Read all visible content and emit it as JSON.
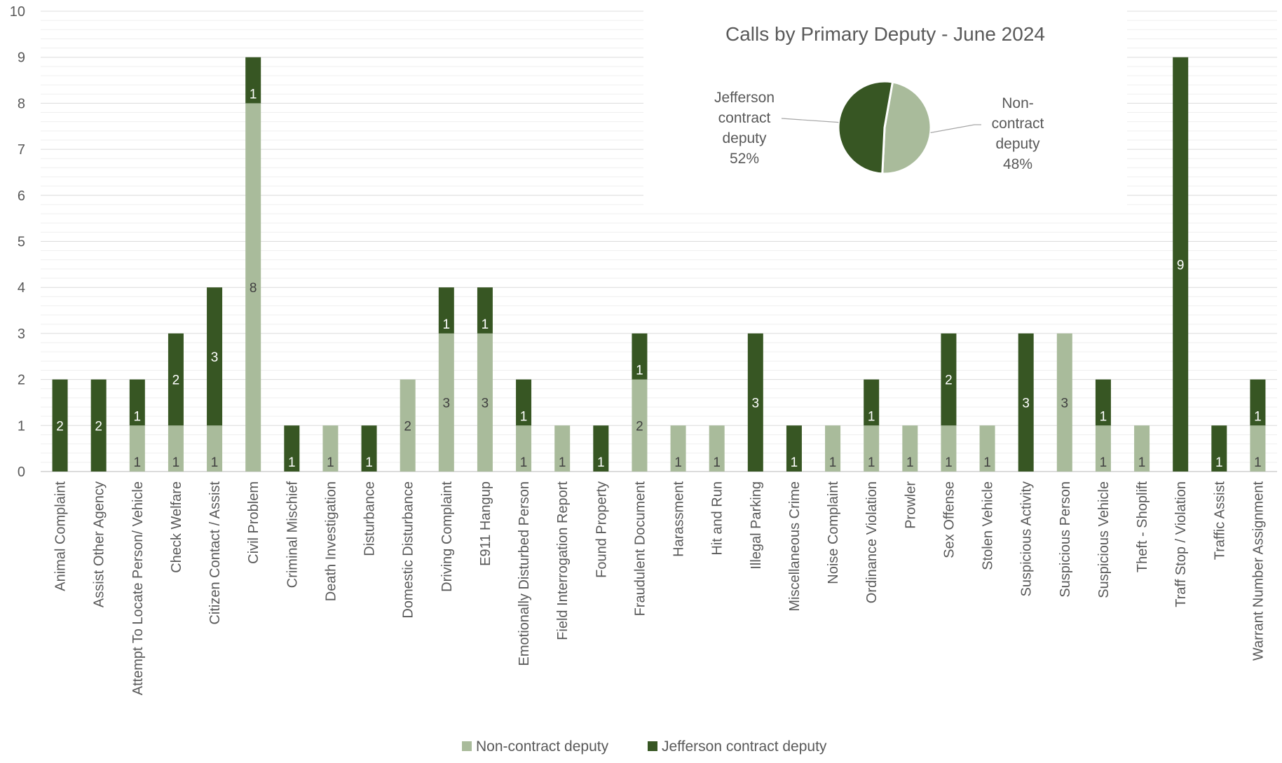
{
  "chart_data": [
    {
      "type": "bar",
      "stacked": true,
      "categories": [
        "Animal Complaint",
        "Assist Other Agency",
        "Attempt To Locate Person/ Vehicle",
        "Check Welfare",
        "Citizen Contact / Assist",
        "Civil Problem",
        "Criminal Mischief",
        "Death Investigation",
        "Disturbance",
        "Domestic Disturbance",
        "Driving Complaint",
        "E911 Hangup",
        "Emotionally Disturbed Person",
        "Field Interrogation Report",
        "Found Property",
        "Fraudulent Document",
        "Harassment",
        "Hit and Run",
        "Illegal Parking",
        "Miscellaneous Crime",
        "Noise Complaint",
        "Ordinance Violation",
        "Prowler",
        "Sex Offense",
        "Stolen Vehicle",
        "Suspicious Activity",
        "Suspicious Person",
        "Suspicious Vehicle",
        "Theft - Shoplift",
        "Traff Stop / Violation",
        "Traffic Assist",
        "Warrant Number Assignment"
      ],
      "series": [
        {
          "name": "Non-contract deputy",
          "color": "#a9bb9b",
          "values": [
            0,
            0,
            1,
            1,
            1,
            8,
            0,
            1,
            0,
            2,
            3,
            3,
            1,
            1,
            0,
            2,
            1,
            1,
            0,
            0,
            1,
            1,
            1,
            1,
            1,
            0,
            3,
            1,
            1,
            0,
            0,
            1
          ]
        },
        {
          "name": "Jefferson contract deputy",
          "color": "#375623",
          "values": [
            2,
            2,
            1,
            2,
            3,
            1,
            1,
            0,
            1,
            0,
            1,
            1,
            1,
            0,
            1,
            1,
            0,
            0,
            3,
            1,
            0,
            1,
            0,
            2,
            0,
            3,
            0,
            1,
            0,
            9,
            1,
            1
          ]
        }
      ],
      "ylim": [
        0,
        10
      ],
      "yticks": [
        0,
        1,
        2,
        3,
        4,
        5,
        6,
        7,
        8,
        9,
        10
      ],
      "legend": {
        "position": "bottom",
        "entries": [
          "Non-contract deputy",
          "Jefferson contract deputy"
        ]
      },
      "grid": true
    },
    {
      "type": "pie",
      "title": "Calls by Primary Deputy - June 2024",
      "slices": [
        {
          "name": "Jefferson contract deputy",
          "value": 52,
          "label_lines": [
            "Jefferson",
            "contract",
            "deputy",
            "52%"
          ],
          "color": "#375623"
        },
        {
          "name": "Non-contract deputy",
          "value": 48,
          "label_lines": [
            "Non-",
            "contract",
            "deputy",
            "48%"
          ],
          "color": "#a9bb9b"
        }
      ]
    }
  ]
}
